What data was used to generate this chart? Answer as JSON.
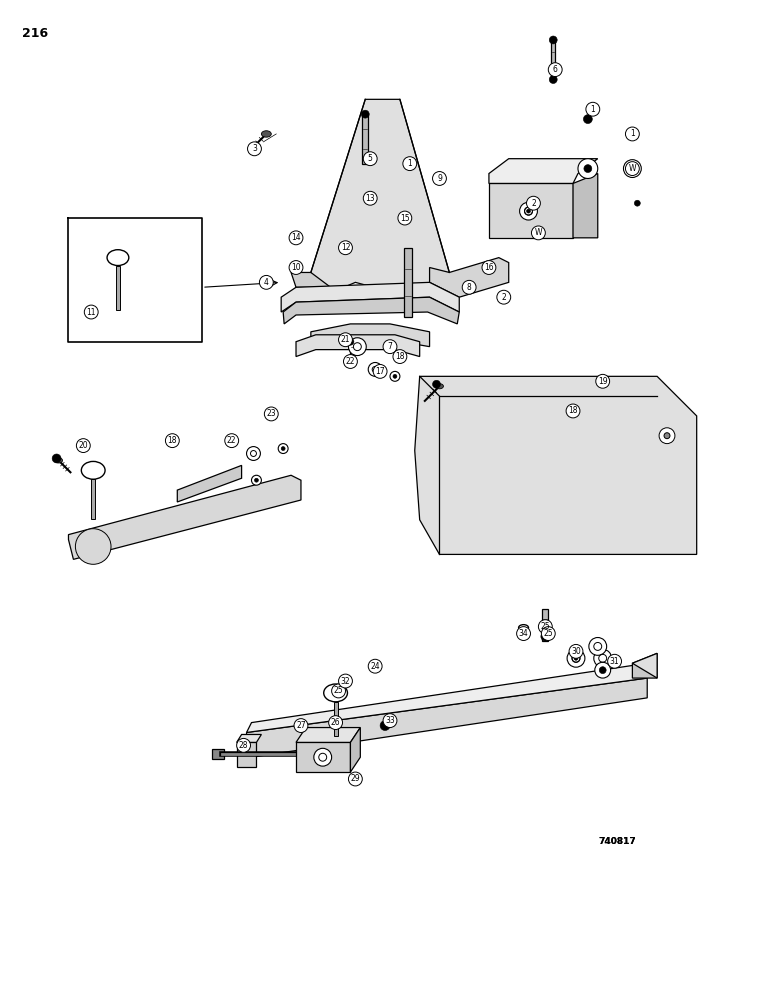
{
  "page_number": "216",
  "part_number": "740817",
  "background_color": "#ffffff",
  "line_color": "#000000",
  "figsize": [
    7.8,
    10.0
  ],
  "dpi": 100
}
